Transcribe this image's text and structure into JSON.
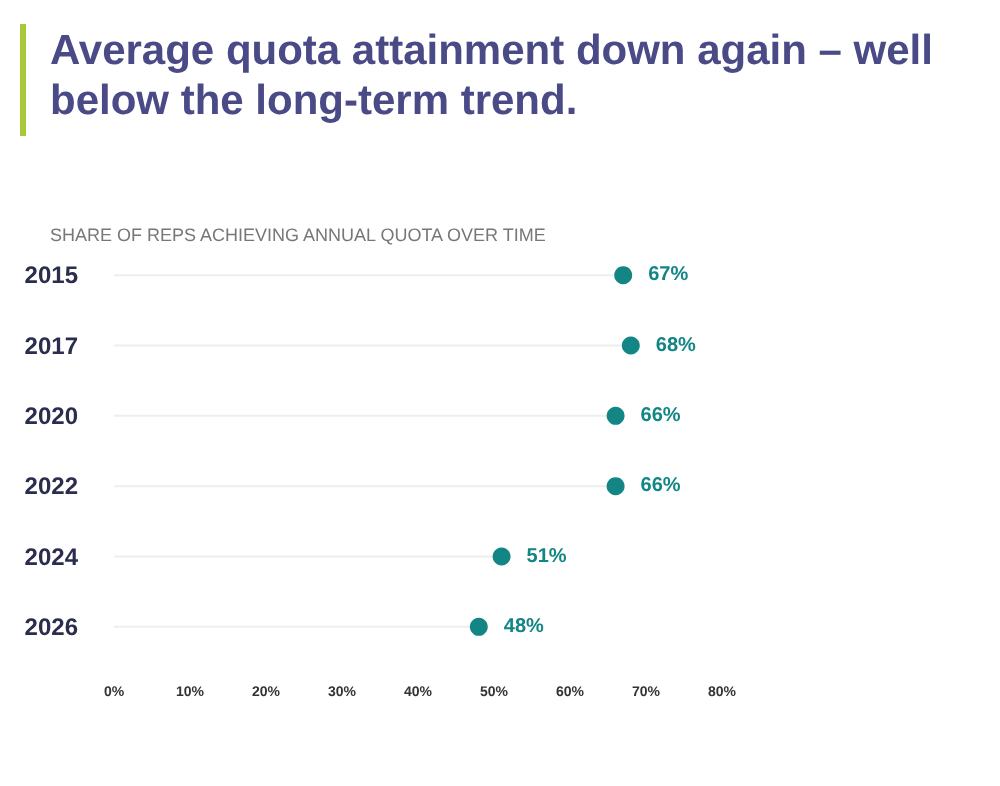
{
  "chart_data": {
    "type": "lollipop",
    "orientation": "horizontal",
    "title": "Average quota attainment down again – well below the long-term trend.",
    "subtitle": "SHARE OF REPS ACHIEVING ANNUAL QUOTA OVER TIME",
    "categories": [
      "2015",
      "2017",
      "2020",
      "2022",
      "2024",
      "2026"
    ],
    "values": [
      67,
      68,
      66,
      66,
      51,
      48
    ],
    "value_labels": [
      "67%",
      "68%",
      "66%",
      "66%",
      "51%",
      "48%"
    ],
    "color": "#138585",
    "xlim": [
      0,
      80
    ],
    "xticks": [
      {
        "value": 0,
        "label": "0%"
      },
      {
        "value": 10,
        "label": "10%"
      },
      {
        "value": 20,
        "label": "20%"
      },
      {
        "value": 30,
        "label": "30%"
      },
      {
        "value": 40,
        "label": "40%"
      },
      {
        "value": 50,
        "label": "50%"
      },
      {
        "value": 60,
        "label": "60%"
      },
      {
        "value": 70,
        "label": "70%"
      },
      {
        "value": 80,
        "label": "80%"
      }
    ],
    "grid": false,
    "marker": "circle"
  }
}
